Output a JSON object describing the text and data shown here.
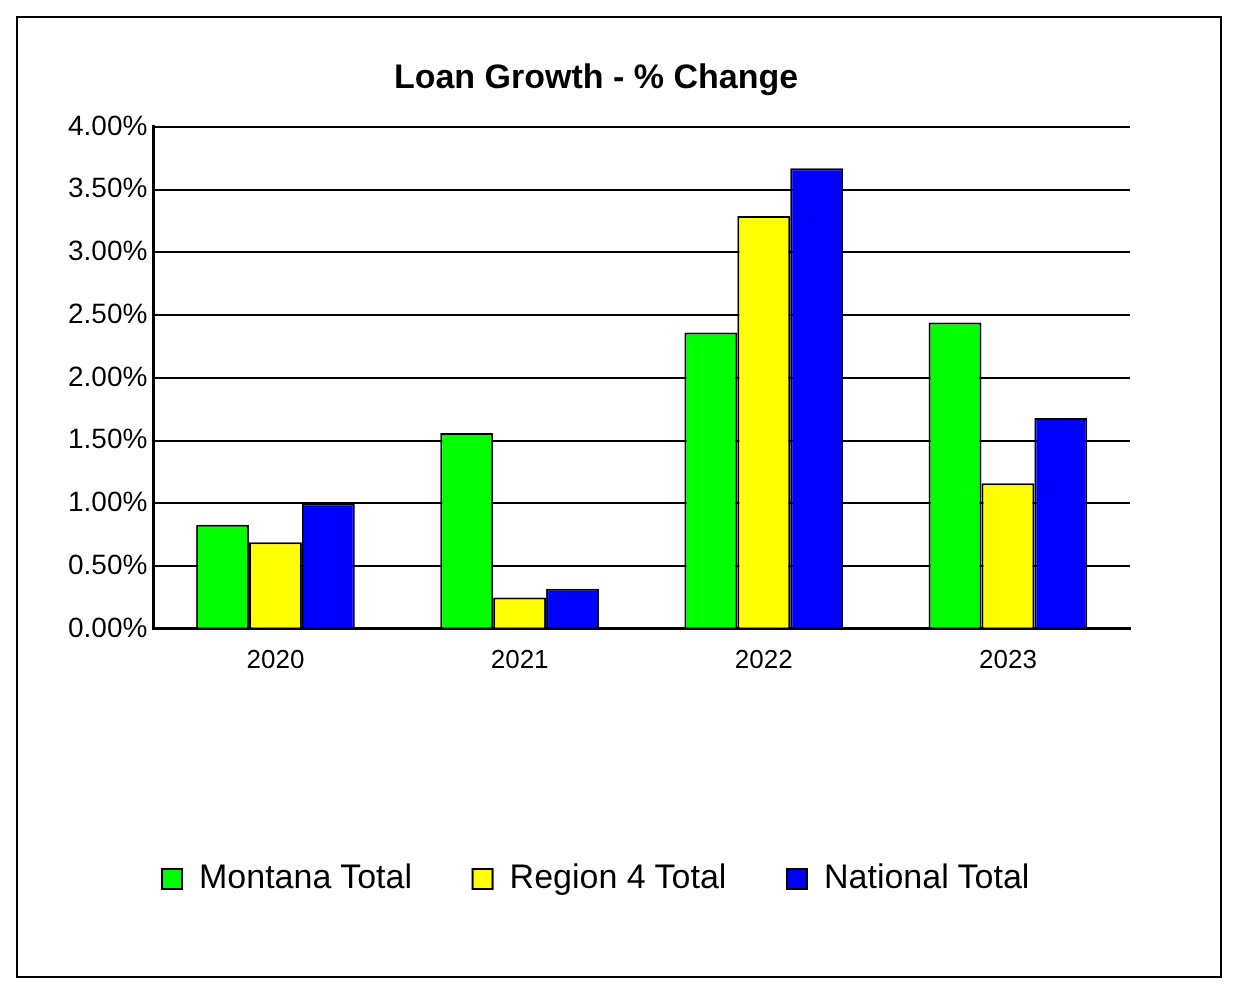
{
  "chart_data": {
    "type": "bar",
    "title": "Loan Growth - % Change",
    "categories": [
      "2020",
      "2021",
      "2022",
      "2023"
    ],
    "series": [
      {
        "name": "Montana Total",
        "color": "#00ff00",
        "values": [
          0.83,
          1.56,
          2.36,
          2.44
        ]
      },
      {
        "name": "Region 4 Total",
        "color": "#ffff00",
        "values": [
          0.69,
          0.25,
          3.29,
          1.16
        ]
      },
      {
        "name": "National Total",
        "color": "#0000ff",
        "values": [
          1.0,
          0.32,
          3.67,
          1.68
        ]
      }
    ],
    "ylim": [
      0,
      4
    ],
    "yticks": [
      {
        "value": 0,
        "label": "0.00%"
      },
      {
        "value": 0.5,
        "label": "0.50%"
      },
      {
        "value": 1,
        "label": "1.00%"
      },
      {
        "value": 1.5,
        "label": "1.50%"
      },
      {
        "value": 2,
        "label": "2.00%"
      },
      {
        "value": 2.5,
        "label": "2.50%"
      },
      {
        "value": 3,
        "label": "3.00%"
      },
      {
        "value": 3.5,
        "label": "3.50%"
      },
      {
        "value": 4,
        "label": "4.00%"
      }
    ],
    "grid": "y",
    "legend": "bottom"
  }
}
